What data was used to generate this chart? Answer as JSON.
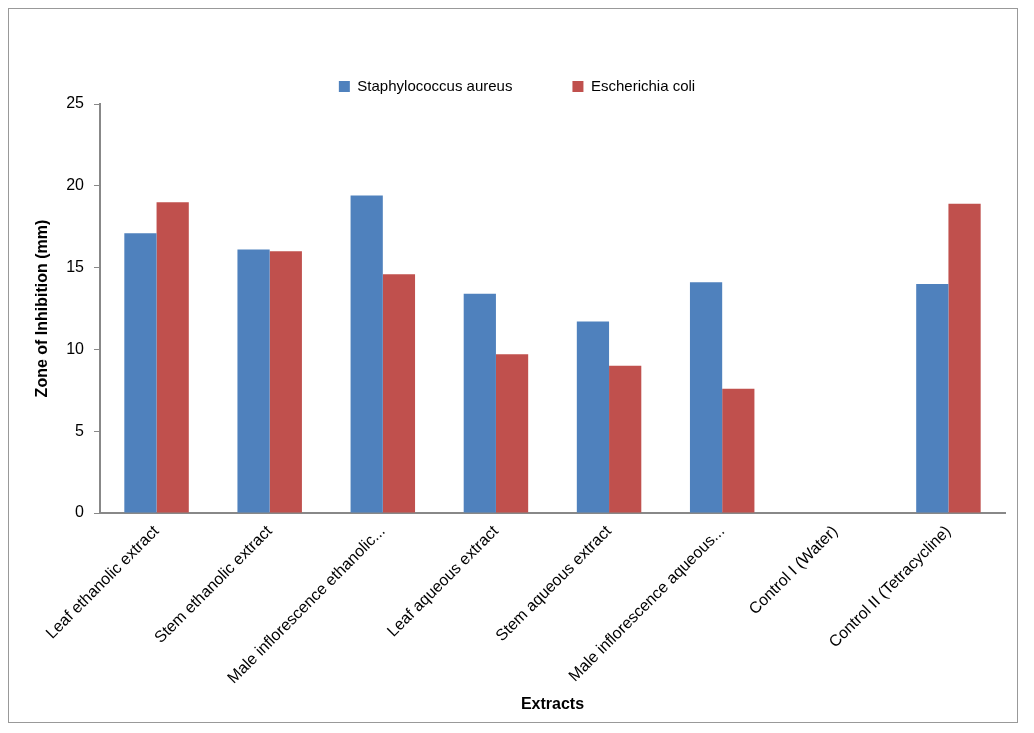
{
  "chart_data": {
    "type": "bar",
    "xlabel": "Extracts",
    "ylabel": "Zone of Inhibition (mm)",
    "categories": [
      "Leaf ethanolic extract",
      "Stem ethanolic extract",
      "Male inflorescence ethanolic...",
      "Leaf aqueous extract",
      "Stem aqueous extract",
      "Male inflorescence aqueous...",
      "Control I (Water)",
      "Control II (Tetracycline)"
    ],
    "series": [
      {
        "name": "Staphylococcus aureus",
        "color": "#4f81bd",
        "values": [
          17.1,
          16.1,
          19.4,
          13.4,
          11.7,
          14.1,
          0,
          14.0
        ]
      },
      {
        "name": "Escherichia coli",
        "color": "#c0504d",
        "values": [
          19.0,
          16.0,
          14.6,
          9.7,
          9.0,
          7.6,
          0,
          18.9
        ]
      }
    ],
    "ylim": [
      0,
      25
    ],
    "yticks": [
      0,
      5,
      10,
      15,
      20,
      25
    ],
    "grid": false,
    "legend": "top"
  }
}
